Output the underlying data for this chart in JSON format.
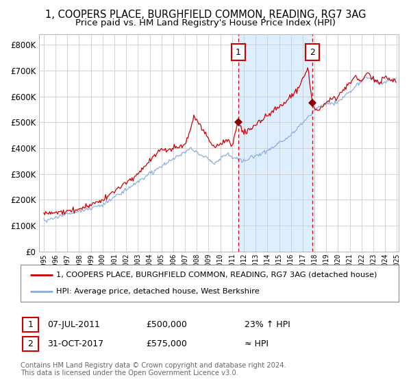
{
  "title_line1": "1, COOPERS PLACE, BURGHFIELD COMMON, READING, RG7 3AG",
  "title_line2": "Price paid vs. HM Land Registry's House Price Index (HPI)",
  "ylim": [
    0,
    840000
  ],
  "yticks": [
    0,
    100000,
    200000,
    300000,
    400000,
    500000,
    600000,
    700000,
    800000
  ],
  "ytick_labels": [
    "£0",
    "£100K",
    "£200K",
    "£300K",
    "£400K",
    "£500K",
    "£600K",
    "£700K",
    "£800K"
  ],
  "sale1_date": 2011.52,
  "sale1_price": 500000,
  "sale2_date": 2017.83,
  "sale2_price": 575000,
  "sale1_text": "07-JUL-2011",
  "sale1_price_text": "£500,000",
  "sale1_hpi_text": "23% ↑ HPI",
  "sale2_text": "31-OCT-2017",
  "sale2_price_text": "£575,000",
  "sale2_hpi_text": "≈ HPI",
  "property_color": "#cc0000",
  "hpi_color": "#88aadd",
  "background_color": "#ffffff",
  "shaded_region_color": "#ddeeff",
  "grid_color": "#cccccc",
  "legend_line1": "1, COOPERS PLACE, BURGHFIELD COMMON, READING, RG7 3AG (detached house)",
  "legend_line2": "HPI: Average price, detached house, West Berkshire",
  "footer_line1": "Contains HM Land Registry data © Crown copyright and database right 2024.",
  "footer_line2": "This data is licensed under the Open Government Licence v3.0."
}
